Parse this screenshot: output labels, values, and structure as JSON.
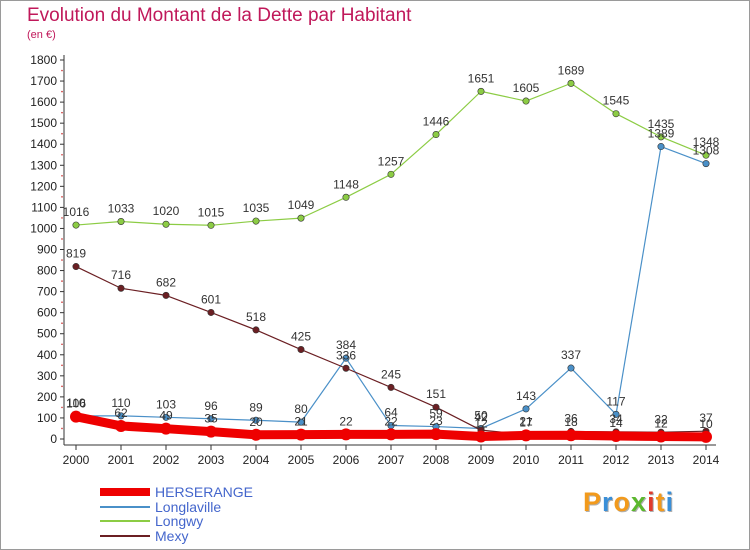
{
  "title": "Evolution du Montant de la Dette par Habitant",
  "subtitle": "(en €)",
  "logo_text": "Proxiti",
  "logo_colors": [
    "#f29a1c",
    "#3a8fd8",
    "#f29a1c",
    "#5cb82e",
    "#e03a2c",
    "#f29a1c",
    "#3a8fd8"
  ],
  "chart_data": {
    "type": "line",
    "categories": [
      "2000",
      "2001",
      "2002",
      "2003",
      "2004",
      "2005",
      "2006",
      "2007",
      "2008",
      "2009",
      "2010",
      "2011",
      "2012",
      "2013",
      "2014"
    ],
    "ylim": [
      0,
      1800
    ],
    "yticks": [
      0,
      100,
      200,
      300,
      400,
      500,
      600,
      700,
      800,
      900,
      1000,
      1100,
      1200,
      1300,
      1400,
      1500,
      1600,
      1700,
      1800
    ],
    "grid": false,
    "legend_position": "bottom-left",
    "series": [
      {
        "name": "HERSERANGE",
        "color": "#ee0000",
        "values": [
          106,
          62,
          49,
          35,
          20,
          21,
          22,
          22,
          23,
          12,
          17,
          18,
          14,
          12,
          10
        ],
        "show_labels": false
      },
      {
        "name": "Longlaville",
        "color": "#4a90c8",
        "values": [
          110,
          110,
          103,
          96,
          89,
          80,
          384,
          64,
          59,
          50,
          143,
          337,
          117,
          1389,
          1308
        ],
        "show_labels": true
      },
      {
        "name": "Longwy",
        "color": "#8ccc44",
        "values": [
          1016,
          1033,
          1020,
          1015,
          1035,
          1049,
          1148,
          1257,
          1446,
          1651,
          1605,
          1689,
          1545,
          1435,
          1348
        ],
        "show_labels": true
      },
      {
        "name": "Mexy",
        "color": "#6b1f23",
        "values": [
          819,
          716,
          682,
          601,
          518,
          425,
          336,
          245,
          151,
          42,
          21,
          36,
          34,
          32,
          37
        ],
        "show_labels": true
      }
    ]
  }
}
